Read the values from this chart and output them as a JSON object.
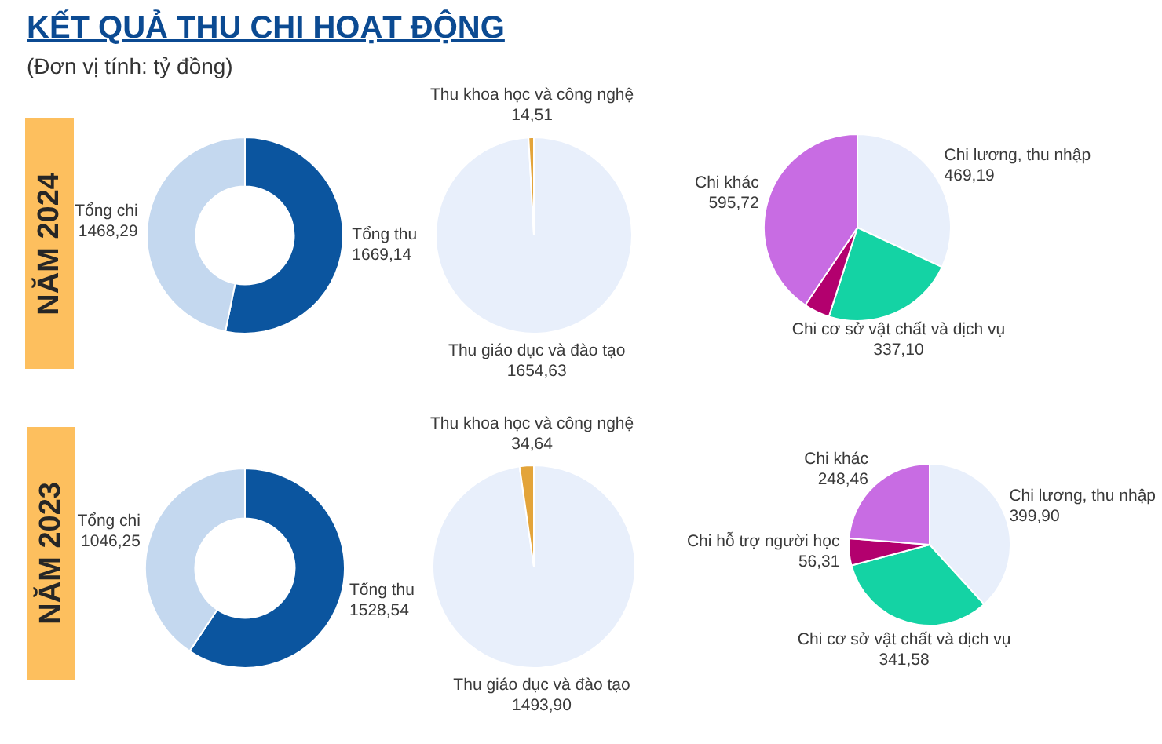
{
  "chart_data": [
    {
      "type": "other",
      "title": "KẾT QUẢ THU CHI HOẠT ĐỘNG",
      "subtitle": "(Đơn vị tính: tỷ đồng)"
    },
    {
      "type": "donut",
      "ylabel": "NĂM 2024",
      "categories": [
        "Tổng thu",
        "Tổng chi"
      ],
      "values": [
        1669.14,
        1468.29
      ],
      "colors": [
        "#0b559f",
        "#c4d8ef"
      ],
      "value_labels": [
        "1669,14",
        "1468,29"
      ]
    },
    {
      "type": "pie",
      "categories": [
        "Thu giáo dục và đào tạo",
        "Thu khoa học và công nghệ"
      ],
      "values": [
        1654.63,
        14.51
      ],
      "colors": [
        "#e8effb",
        "#e3a43a"
      ],
      "value_labels": [
        "1654,63",
        "14,51"
      ]
    },
    {
      "type": "pie",
      "categories": [
        "Chi lương, thu nhập",
        "Chi cơ sở vật chất và dịch vụ",
        null,
        "Chi khác"
      ],
      "values": [
        469.19,
        337.1,
        66,
        595.72
      ],
      "colors": [
        "#e8effb",
        "#14d3a4",
        "#b3006e",
        "#c86ce3"
      ],
      "value_labels": [
        "469,19",
        "337,10",
        null,
        "595,72"
      ]
    },
    {
      "type": "donut",
      "ylabel": "NĂM 2023",
      "categories": [
        "Tổng thu",
        "Tổng chi"
      ],
      "values": [
        1528.54,
        1046.25
      ],
      "colors": [
        "#0b559f",
        "#c4d8ef"
      ],
      "value_labels": [
        "1528,54",
        "1046,25"
      ]
    },
    {
      "type": "pie",
      "categories": [
        "Thu giáo dục và đào tạo",
        "Thu khoa học và công nghệ"
      ],
      "values": [
        1493.9,
        34.64
      ],
      "colors": [
        "#e8effb",
        "#e3a43a"
      ],
      "value_labels": [
        "1493,90",
        "34,64"
      ]
    },
    {
      "type": "pie",
      "categories": [
        "Chi lương, thu nhập",
        "Chi cơ sở vật chất và dịch vụ",
        "Chi hỗ trợ người học",
        "Chi khác"
      ],
      "values": [
        399.9,
        341.58,
        56.31,
        248.46
      ],
      "colors": [
        "#e8effb",
        "#14d3a4",
        "#b3006e",
        "#c86ce3"
      ],
      "value_labels": [
        "399,90",
        "341,58",
        "56,31",
        "248,46"
      ]
    }
  ]
}
